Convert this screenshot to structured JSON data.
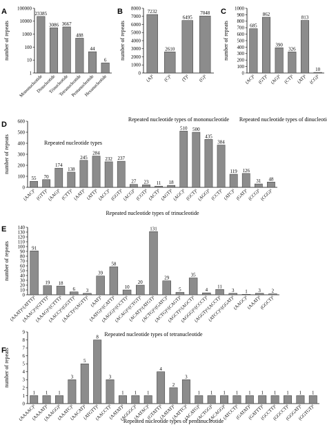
{
  "colors": {
    "bar_fill": "#8c8c8c",
    "bar_stroke": "#333333",
    "axis": "#000000"
  },
  "chart_data": [
    {
      "id": "A",
      "panel_label": "A",
      "type": "bar",
      "ylabel": "number of repeats",
      "xlabel": "Repeated nucleotide types",
      "y_scale": "log",
      "ylim": [
        1,
        100000
      ],
      "yticks": [
        1,
        10,
        100,
        1000,
        10000,
        100000
      ],
      "ytick_labels": [
        "1",
        "10",
        "100",
        "1000",
        "10000",
        "100000"
      ],
      "categories": [
        "Mononucleotide",
        "Dinucleotide",
        "Trinucleotide",
        "Tetranucleotide",
        "Pentanucleotide",
        "Hexanucleotide"
      ],
      "values": [
        23385,
        3086,
        3667,
        488,
        44,
        6
      ],
      "value_labels": [
        "23385",
        "3086",
        "3667",
        "488",
        "44",
        "6"
      ]
    },
    {
      "id": "B",
      "panel_label": "B",
      "type": "bar",
      "ylabel": "number of repeats",
      "xlabel": "Repeated nucleotide types of mononucleotide",
      "y_scale": "linear",
      "ylim": [
        0,
        8000
      ],
      "yticks": [
        0,
        1000,
        2000,
        3000,
        4000,
        5000,
        6000,
        7000,
        8000
      ],
      "ytick_labels": [
        "0",
        "1000",
        "2000",
        "3000",
        "4000",
        "5000",
        "6000",
        "7000",
        "8000"
      ],
      "categories": [
        "(A)^",
        "(C)^",
        "(T)^",
        "(G)^"
      ],
      "values": [
        7232,
        2610,
        6495,
        7048
      ],
      "value_labels": [
        "7232",
        "2610",
        "6495",
        "7048"
      ]
    },
    {
      "id": "C",
      "panel_label": "C",
      "type": "bar",
      "ylabel": "number of repeats",
      "xlabel": "Repeated nucleotide types of dinucleotide",
      "y_scale": "linear",
      "ylim": [
        0,
        1000
      ],
      "yticks": [
        0,
        100,
        200,
        300,
        400,
        500,
        600,
        700,
        800,
        900,
        1000
      ],
      "ytick_labels": [
        "0",
        "100",
        "200",
        "300",
        "400",
        "500",
        "600",
        "700",
        "800",
        "900",
        "1000"
      ],
      "categories": [
        "(AC)^",
        "(GT)^",
        "(AG)^",
        "(CT)^",
        "(AT)^",
        "(CG)^"
      ],
      "values": [
        685,
        862,
        390,
        326,
        813,
        10
      ],
      "value_labels": [
        "685",
        "862",
        "390",
        "326",
        "813",
        "10"
      ]
    },
    {
      "id": "D",
      "panel_label": "D",
      "type": "bar",
      "ylabel": "number of repeats",
      "xlabel": "Repeated nucleotide types of  trinucleotide",
      "y_scale": "linear",
      "ylim": [
        0,
        600
      ],
      "yticks": [
        0,
        100,
        200,
        300,
        400,
        500,
        600
      ],
      "ytick_labels": [
        "0",
        "100",
        "200",
        "300",
        "400",
        "500",
        "600"
      ],
      "categories": [
        "(AAC)^",
        "(GTT)^",
        "(AAG)^",
        "(CTT)^",
        "(AAT)^",
        "(ATT)^",
        "(ACC)^",
        "(GGT)^",
        "(ACG)^",
        "(CGT)^",
        "(ACT)^",
        "(AGT)^",
        "(AGC)^",
        "(GCT)^",
        "(AGG)^",
        "(CCT)^",
        "(ATC)^",
        "(GAT)^",
        "(CCG)^",
        "(CGG)^"
      ],
      "values": [
        55,
        70,
        174,
        138,
        245,
        284,
        232,
        237,
        27,
        23,
        11,
        18,
        510,
        500,
        435,
        384,
        119,
        126,
        31,
        48
      ],
      "value_labels": [
        "55",
        "70",
        "174",
        "138",
        "245",
        "284",
        "232",
        "237",
        "27",
        "23",
        "11",
        "18",
        "510",
        "500",
        "435",
        "384",
        "119",
        "126",
        "31",
        "48"
      ]
    },
    {
      "id": "E",
      "panel_label": "E",
      "type": "bar",
      "ylabel": "number of repeats",
      "xlabel": "Repeated nucleotide types of tetranucleotide",
      "y_scale": "linear",
      "ylim": [
        0,
        140
      ],
      "yticks": [
        0,
        10,
        20,
        30,
        40,
        50,
        60,
        70,
        80,
        90,
        100,
        110,
        120,
        130,
        140
      ],
      "ytick_labels": [
        "0",
        "10",
        "20",
        "30",
        "40",
        "50",
        "60",
        "70",
        "80",
        "90",
        "100",
        "110",
        "120",
        "130",
        "140"
      ],
      "categories": [
        "(AAAT)^/(ATTT)^",
        "(AAAC)^/(GTTT)^",
        "(AAAG)^/(CTTT)^",
        "(AACC)^/(GGTT)^",
        "(AACT)^/(AGTT)^",
        "(AAT)^",
        "(AATG)^/(CATT)^",
        "(AAGG)^/(CCTT)^",
        "(ACAG)^/(CTGT)^",
        "(ACAT)^/(ATGT)^",
        "(ACTG)^/(GATC)^",
        "(ACTG)^/(CAGT)^",
        "(AGCT)^/(AGCT)^",
        "(AGGG)^/(CCCT)^",
        "(AGGT)^/(ACCT)^",
        "(ATCC)^/(GGAT)^",
        "(AAGC)^",
        "(AAAT)^",
        "(GGCT)^"
      ],
      "values": [
        91,
        19,
        18,
        6,
        3,
        39,
        58,
        10,
        20,
        131,
        29,
        5,
        35,
        4,
        11,
        3,
        1,
        3,
        2
      ],
      "value_labels": [
        "91",
        "19",
        "18",
        "6",
        "3",
        "39",
        "58",
        "10",
        "20",
        "131",
        "29",
        "5",
        "35",
        "4",
        "11",
        "3",
        "1",
        "3",
        "2"
      ]
    },
    {
      "id": "F",
      "panel_label": "F",
      "type": "bar",
      "ylabel": "number of repeats",
      "xlabel": "Repeated nucleotide types of pentanucleotide",
      "y_scale": "linear",
      "ylim": [
        0,
        9
      ],
      "yticks": [
        0,
        1,
        2,
        3,
        4,
        5,
        6,
        7,
        8,
        9
      ],
      "ytick_labels": [
        "0",
        "1",
        "2",
        "3",
        "4",
        "5",
        "6",
        "7",
        "8",
        "9"
      ],
      "categories": [
        "(AAAAC)^",
        "(AAAAT)^",
        "(AAAGG)^",
        "(AAATC)^",
        "(AACAT)^",
        "(ATGTT)^",
        "(AACCT)^",
        "(AATAT)^",
        "(AGGGC)^",
        "(AATAC)^",
        "(GTATT)^",
        "(AATAT)^",
        "(AATTC)^",
        "(ACATG)^",
        "(ACTGG)^",
        "(ACAGG)^",
        "(ATCCT)^",
        "(GATAT)^",
        "(GATTT)^",
        "(GCCTT)^",
        "(GGCCT)^",
        "(GGGAT)^",
        "(GGTGT)^"
      ],
      "values": [
        1,
        1,
        1,
        3,
        5,
        8,
        3,
        1,
        1,
        1,
        4,
        2,
        3,
        1,
        1,
        1,
        1,
        1,
        1,
        1,
        1,
        1,
        1
      ],
      "value_labels": [
        "1",
        "1",
        "1",
        "3",
        "5",
        "8",
        "3",
        "1",
        "1",
        "1",
        "4",
        "2",
        "3",
        "1",
        "1",
        "1",
        "1",
        "1",
        "1",
        "1",
        "1",
        "1",
        "1"
      ]
    }
  ]
}
